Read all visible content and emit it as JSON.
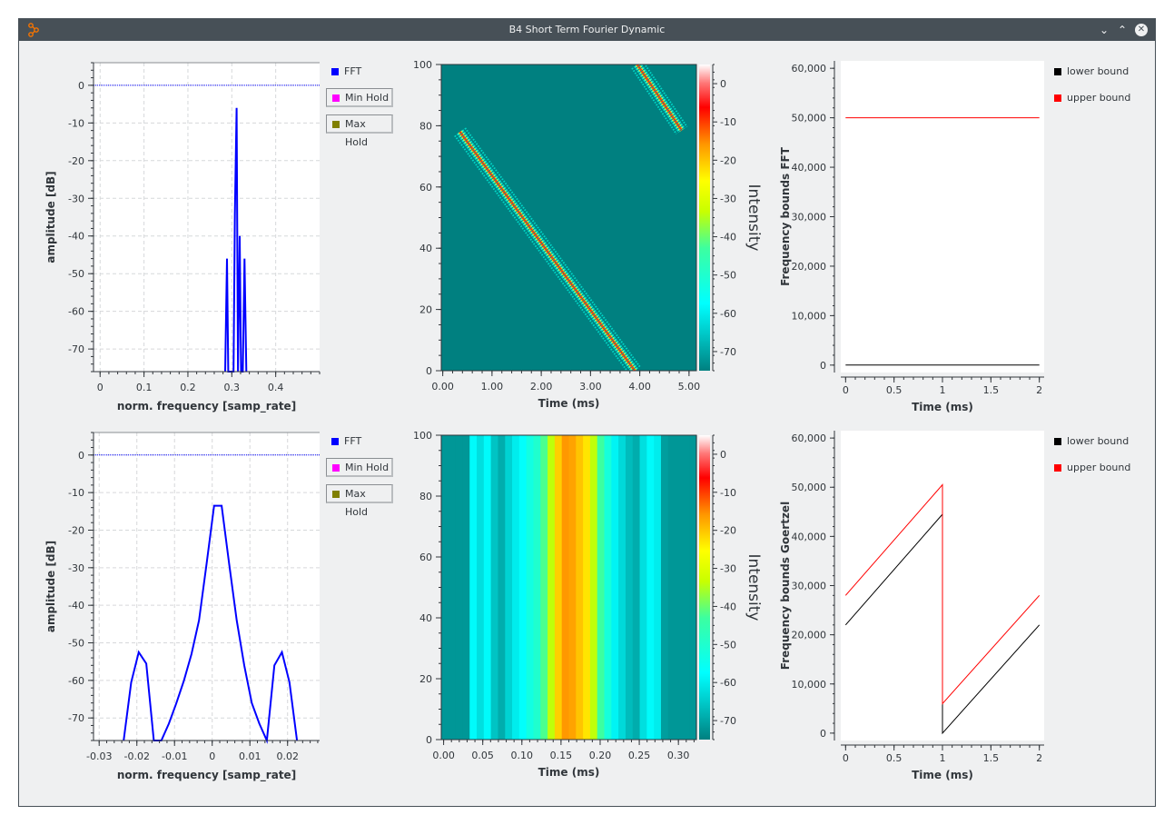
{
  "window": {
    "title": "B4 Short Term Fourier Dynamic",
    "minimize_label": "⌄",
    "maximize_label": "⌃",
    "close_label": "✕"
  },
  "colors": {
    "fft": "#0000ff",
    "min_hold": "#ff00ff",
    "max_hold": "#808000",
    "lower_bound": "#000000",
    "upper_bound": "#ff0000",
    "waterfall_bg": "#008080"
  },
  "fft_legend": {
    "fft": "FFT",
    "min_hold": "Min Hold",
    "max_hold": "Max Hold"
  },
  "bounds_legend": {
    "lower": "lower bound",
    "upper": "upper bound"
  },
  "panels": {
    "fft_top": {
      "xlabel": "norm. frequency [samp_rate]",
      "ylabel": "amplitude [dB]",
      "xticks": [
        "0",
        "0.1",
        "0.2",
        "0.3",
        "0.4"
      ],
      "yticks": [
        "0",
        "-10",
        "-20",
        "-30",
        "-40",
        "-50",
        "-60",
        "-70"
      ]
    },
    "waterfall_top": {
      "xlabel": "Time (ms)",
      "colorbar_label": "Intensity",
      "xticks": [
        "0.00",
        "1.00",
        "2.00",
        "3.00",
        "4.00",
        "5.00"
      ],
      "yticks": [
        "0",
        "20",
        "40",
        "60",
        "80",
        "100"
      ],
      "cticks": [
        "0",
        "-10",
        "-20",
        "-30",
        "-40",
        "-50",
        "-60",
        "-70"
      ]
    },
    "bounds_top": {
      "xlabel": "Time (ms)",
      "ylabel": "Frequency bounds FFT",
      "xticks": [
        "0",
        "0.5",
        "1",
        "1.5",
        "2"
      ],
      "yticks": [
        "0",
        "10,000",
        "20,000",
        "30,000",
        "40,000",
        "50,000",
        "60,000"
      ]
    },
    "fft_bottom": {
      "xlabel": "norm. frequency [samp_rate]",
      "ylabel": "amplitude [dB]",
      "xticks": [
        "-0.03",
        "-0.02",
        "-0.01",
        "0",
        "0.01",
        "0.02"
      ],
      "yticks": [
        "0",
        "-10",
        "-20",
        "-30",
        "-40",
        "-50",
        "-60",
        "-70"
      ]
    },
    "waterfall_bottom": {
      "xlabel": "Time (ms)",
      "colorbar_label": "Intensity",
      "xticks": [
        "0.00",
        "0.05",
        "0.10",
        "0.15",
        "0.20",
        "0.25",
        "0.30"
      ],
      "yticks": [
        "0",
        "20",
        "40",
        "60",
        "80",
        "100"
      ],
      "cticks": [
        "0",
        "-10",
        "-20",
        "-30",
        "-40",
        "-50",
        "-60",
        "-70"
      ]
    },
    "bounds_bottom": {
      "xlabel": "Time (ms)",
      "ylabel": "Frequency bounds Goertzel",
      "xticks": [
        "0",
        "0.5",
        "1",
        "1.5",
        "2"
      ],
      "yticks": [
        "0",
        "10,000",
        "20,000",
        "30,000",
        "40,000",
        "50,000",
        "60,000"
      ]
    }
  },
  "chart_data": [
    {
      "type": "line",
      "id": "fft_top",
      "xlabel": "norm. frequency [samp_rate]",
      "ylabel": "amplitude [dB]",
      "xlim": [
        -0.015,
        0.5
      ],
      "ylim": [
        -76,
        6
      ],
      "grid": true,
      "series": [
        {
          "name": "FFT",
          "x": [
            0.285,
            0.289,
            0.292,
            0.296,
            0.3,
            0.304,
            0.307,
            0.311,
            0.314,
            0.318,
            0.321,
            0.325,
            0.329,
            0.333
          ],
          "y": [
            -76,
            -46,
            -76,
            -76,
            -76,
            -76,
            -34,
            -6,
            -76,
            -40,
            -76,
            -76,
            -46,
            -76
          ]
        }
      ],
      "reference_line_y": 0
    },
    {
      "type": "heatmap",
      "id": "waterfall_top",
      "xlabel": "Time (ms)",
      "xlim": [
        -0.03,
        5.15
      ],
      "ylim": [
        0,
        100
      ],
      "colorbar": {
        "label": "Intensity",
        "range": [
          -75,
          5
        ]
      },
      "tracks": [
        {
          "x_start": 0.35,
          "y_start": 78,
          "x_end": 3.9,
          "y_end": 0
        },
        {
          "x_start": 3.95,
          "y_start": 100,
          "x_end": 4.85,
          "y_end": 78.5
        }
      ]
    },
    {
      "type": "line",
      "id": "bounds_top",
      "xlabel": "Time (ms)",
      "ylabel": "Frequency bounds FFT",
      "xlim": [
        -0.05,
        2.05
      ],
      "ylim": [
        -1500,
        61500
      ],
      "series": [
        {
          "name": "lower bound",
          "x": [
            0,
            2
          ],
          "y": [
            0,
            0
          ]
        },
        {
          "name": "upper bound",
          "x": [
            0,
            2
          ],
          "y": [
            50000,
            50000
          ]
        }
      ]
    },
    {
      "type": "line",
      "id": "fft_bottom",
      "xlabel": "norm. frequency [samp_rate]",
      "ylabel": "amplitude [dB]",
      "xlim": [
        -0.0315,
        0.0285
      ],
      "ylim": [
        -76,
        6
      ],
      "grid": true,
      "series": [
        {
          "name": "FFT",
          "x": [
            -0.0235,
            -0.0215,
            -0.0195,
            -0.0175,
            -0.0155,
            -0.0135,
            -0.0115,
            -0.0095,
            -0.0075,
            -0.0055,
            -0.0035,
            -0.0015,
            0.0005,
            0.0025,
            0.0045,
            0.0065,
            0.0085,
            0.0105,
            0.0125,
            0.0145,
            0.0165,
            0.0185,
            0.0205,
            0.0225
          ],
          "y": [
            -76,
            -60.5,
            -52.5,
            -55.5,
            -76,
            -76,
            -71.5,
            -66,
            -60,
            -53,
            -44,
            -29,
            -13.5,
            -13.5,
            -29,
            -44,
            -56,
            -66,
            -71.5,
            -76,
            -56,
            -52.5,
            -60.5,
            -76
          ]
        }
      ],
      "reference_line_y": 0
    },
    {
      "type": "heatmap",
      "id": "waterfall_bottom",
      "xlabel": "Time (ms)",
      "xlim": [
        -0.003,
        0.323
      ],
      "ylim": [
        0,
        100
      ],
      "colorbar": {
        "label": "Intensity",
        "range": [
          -75,
          5
        ]
      },
      "columns_db": [
        -72,
        -72,
        -72,
        -72,
        -58,
        -62,
        -58,
        -66,
        -69,
        -64,
        -60,
        -57,
        -53,
        -50,
        -42,
        -34,
        -21,
        -16,
        -17,
        -20,
        -23,
        -34,
        -43,
        -52,
        -59,
        -63,
        -67,
        -69,
        -62,
        -58,
        -60,
        -71,
        -72,
        -72,
        -72,
        -72
      ]
    },
    {
      "type": "line",
      "id": "bounds_bottom",
      "xlabel": "Time (ms)",
      "ylabel": "Frequency bounds Goertzel",
      "xlim": [
        -0.05,
        2.05
      ],
      "ylim": [
        -1500,
        61500
      ],
      "series": [
        {
          "name": "lower bound",
          "x": [
            0,
            1,
            1,
            2
          ],
          "y": [
            22000,
            44500,
            0,
            22000
          ]
        },
        {
          "name": "upper bound",
          "x": [
            0,
            1,
            1,
            2
          ],
          "y": [
            28000,
            50500,
            6000,
            28000
          ]
        }
      ]
    }
  ]
}
